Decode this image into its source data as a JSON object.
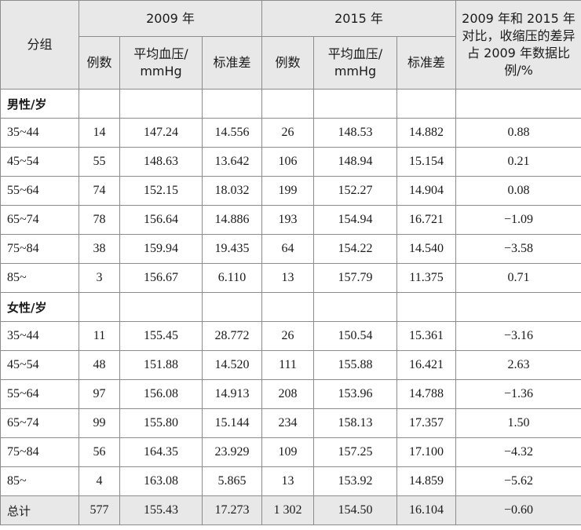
{
  "headers": {
    "group": "分组",
    "year_2009": "2009 年",
    "year_2015": "2015 年",
    "compare": "2009 年和 2015 年对比，收缩压的差异占 2009 年数据比例/%",
    "count": "例数",
    "mean_bp": "平均血压/ mmHg",
    "sd": "标准差"
  },
  "male": {
    "label": "男性/岁",
    "rows": [
      {
        "age": "35~44",
        "n09": "14",
        "m09": "147.24",
        "s09": "14.556",
        "n15": "26",
        "m15": "148.53",
        "s15": "14.882",
        "pct": "0.88"
      },
      {
        "age": "45~54",
        "n09": "55",
        "m09": "148.63",
        "s09": "13.642",
        "n15": "106",
        "m15": "148.94",
        "s15": "15.154",
        "pct": "0.21"
      },
      {
        "age": "55~64",
        "n09": "74",
        "m09": "152.15",
        "s09": "18.032",
        "n15": "199",
        "m15": "152.27",
        "s15": "14.904",
        "pct": "0.08"
      },
      {
        "age": "65~74",
        "n09": "78",
        "m09": "156.64",
        "s09": "14.886",
        "n15": "193",
        "m15": "154.94",
        "s15": "16.721",
        "pct": "−1.09"
      },
      {
        "age": "75~84",
        "n09": "38",
        "m09": "159.94",
        "s09": "19.435",
        "n15": "64",
        "m15": "154.22",
        "s15": "14.540",
        "pct": "−3.58"
      },
      {
        "age": "85~",
        "n09": "3",
        "m09": "156.67",
        "s09": "6.110",
        "n15": "13",
        "m15": "157.79",
        "s15": "11.375",
        "pct": "0.71"
      }
    ]
  },
  "female": {
    "label": "女性/岁",
    "rows": [
      {
        "age": "35~44",
        "n09": "11",
        "m09": "155.45",
        "s09": "28.772",
        "n15": "26",
        "m15": "150.54",
        "s15": "15.361",
        "pct": "−3.16"
      },
      {
        "age": "45~54",
        "n09": "48",
        "m09": "151.88",
        "s09": "14.520",
        "n15": "111",
        "m15": "155.88",
        "s15": "16.421",
        "pct": "2.63"
      },
      {
        "age": "55~64",
        "n09": "97",
        "m09": "156.08",
        "s09": "14.913",
        "n15": "208",
        "m15": "153.96",
        "s15": "14.788",
        "pct": "−1.36"
      },
      {
        "age": "65~74",
        "n09": "99",
        "m09": "155.80",
        "s09": "15.144",
        "n15": "234",
        "m15": "158.13",
        "s15": "17.357",
        "pct": "1.50"
      },
      {
        "age": "75~84",
        "n09": "56",
        "m09": "164.35",
        "s09": "23.929",
        "n15": "109",
        "m15": "157.25",
        "s15": "17.100",
        "pct": "−4.32"
      },
      {
        "age": "85~",
        "n09": "4",
        "m09": "163.08",
        "s09": "5.865",
        "n15": "13",
        "m15": "153.92",
        "s15": "14.859",
        "pct": "−5.62"
      }
    ]
  },
  "total": {
    "label": "总计",
    "n09": "577",
    "m09": "155.43",
    "s09": "17.273",
    "n15": "1 302",
    "m15": "154.50",
    "s15": "16.104",
    "pct": "−0.60"
  }
}
